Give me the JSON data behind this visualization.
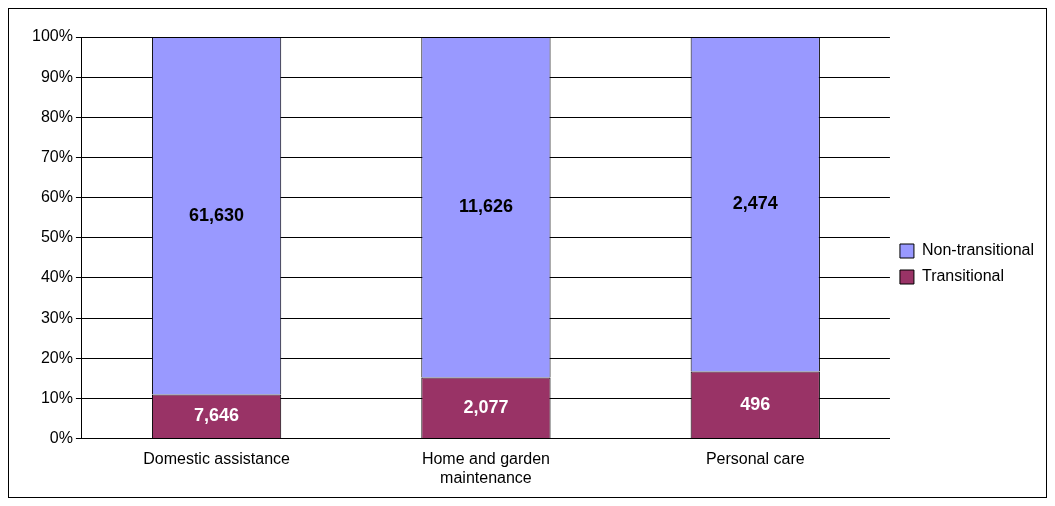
{
  "chart_data": {
    "type": "bar",
    "stacked": true,
    "categories": [
      "Domestic assistance",
      "Home and garden maintenance",
      "Personal care"
    ],
    "series": [
      {
        "name": "Transitional",
        "color": "#993366",
        "values": [
          11.0,
          15.2,
          16.7
        ]
      },
      {
        "name": "Non-transitional",
        "color": "#9999ff",
        "values": [
          89.0,
          84.8,
          83.3
        ]
      }
    ],
    "annotations": [
      "7,646",
      "61,630",
      "2,077",
      "11,626",
      "496",
      "2,474"
    ],
    "ylim": [
      0,
      100
    ],
    "yticks": [
      {
        "value": 0,
        "label": "0%"
      },
      {
        "value": 10,
        "label": "10%"
      },
      {
        "value": 20,
        "label": "20%"
      },
      {
        "value": 30,
        "label": "30%"
      },
      {
        "value": 40,
        "label": "40%"
      },
      {
        "value": 50,
        "label": "50%"
      },
      {
        "value": 60,
        "label": "60%"
      },
      {
        "value": 70,
        "label": "70%"
      },
      {
        "value": 80,
        "label": "80%"
      },
      {
        "value": 90,
        "label": "90%"
      },
      {
        "value": 100,
        "label": "100%"
      }
    ],
    "grid": "y",
    "legend": "right"
  }
}
